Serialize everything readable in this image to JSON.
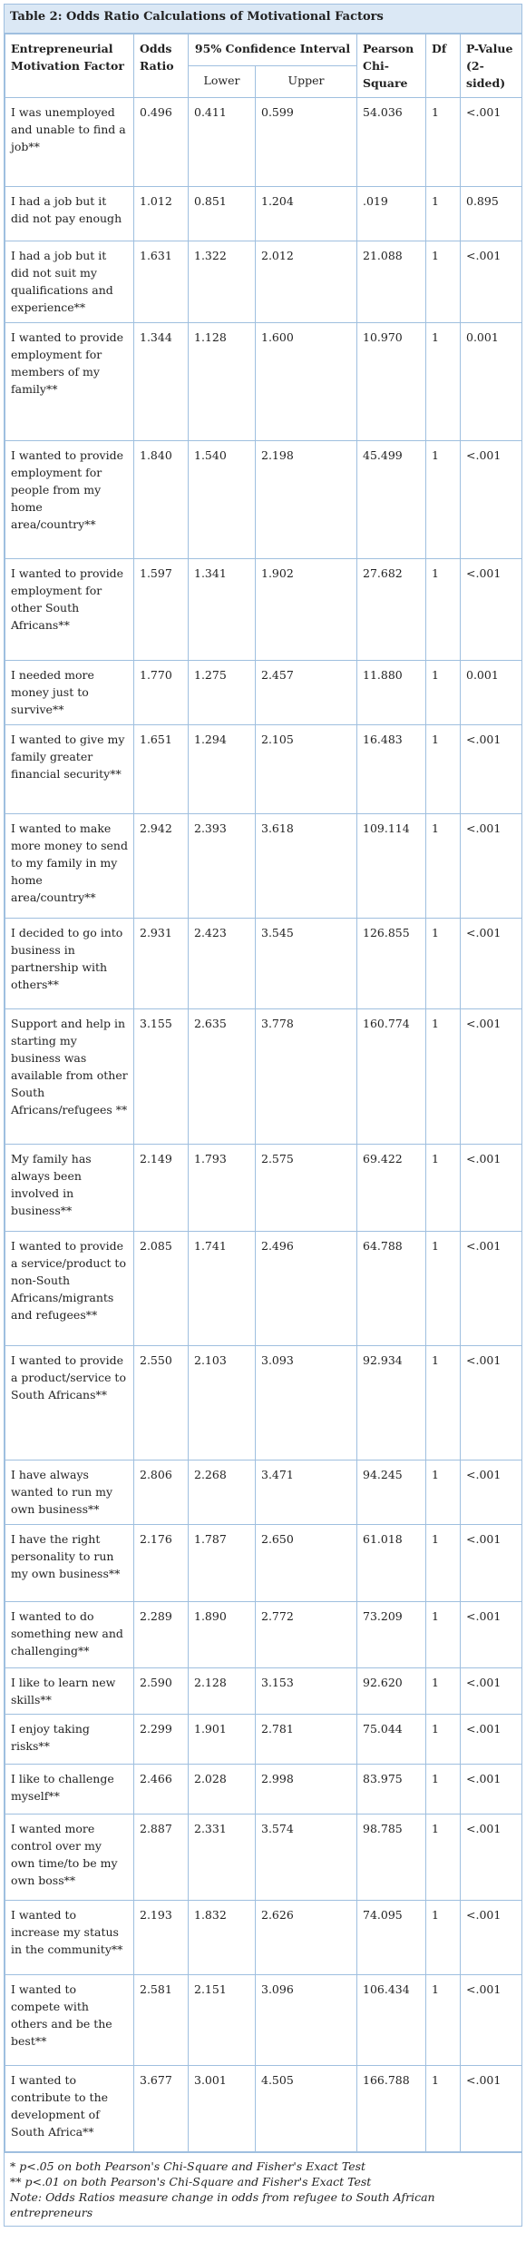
{
  "title": "Table 2: Odds Ratio Calculations of Motivational Factors",
  "header": {
    "factor": "Entrepreneurial Motivation Factor",
    "odds": "Odds Ratio",
    "ci": "95% Confidence Interval",
    "lower": "Lower",
    "upper": "Upper",
    "chi": "Pearson Chi-Square",
    "df": "Df",
    "p": "P-Value (2-sided)"
  },
  "table": {
    "rows": [
      [
        "I was unemployed and unable to find a job**",
        "0.496",
        "0.411",
        "0.599",
        "54.036",
        "1",
        "<.001"
      ],
      [
        "I had a job but it did not pay enough",
        "1.012",
        "0.851",
        "1.204",
        ".019",
        "1",
        "0.895"
      ],
      [
        "I had a job but it did not suit my qualifications and experience**",
        "1.631",
        "1.322",
        "2.012",
        "21.088",
        "1",
        "<.001"
      ],
      [
        "I wanted to provide employment for members of my family**",
        "1.344",
        "1.128",
        "1.600",
        "10.970",
        "1",
        "0.001"
      ],
      [
        "I wanted to provide employment for people from my home area/country**",
        "1.840",
        "1.540",
        "2.198",
        "45.499",
        "1",
        "<.001"
      ],
      [
        "I wanted to provide employment for other South Africans**",
        "1.597",
        "1.341",
        "1.902",
        "27.682",
        "1",
        "<.001"
      ],
      [
        "I needed more money just to survive**",
        "1.770",
        "1.275",
        "2.457",
        "11.880",
        "1",
        "0.001"
      ],
      [
        "I wanted to give my family greater financial security**",
        "1.651",
        "1.294",
        "2.105",
        "16.483",
        "1",
        "<.001"
      ],
      [
        "I wanted to make more money to send to my family in my home area/country**",
        "2.942",
        "2.393",
        "3.618",
        "109.114",
        "1",
        "<.001"
      ],
      [
        "I decided to go into business in partnership with others**",
        "2.931",
        "2.423",
        "3.545",
        "126.855",
        "1",
        "<.001"
      ],
      [
        "Support and help in starting my business was available from other South Africans/refugees **",
        "3.155",
        "2.635",
        "3.778",
        "160.774",
        "1",
        "<.001"
      ],
      [
        "My family has always been involved in business**",
        "2.149",
        "1.793",
        "2.575",
        "69.422",
        "1",
        "<.001"
      ],
      [
        "I wanted to provide a service/product to non-South Africans/migrants and refugees**",
        "2.085",
        "1.741",
        "2.496",
        "64.788",
        "1",
        "<.001"
      ],
      [
        "I wanted to provide a product/service to South Africans**",
        "2.550",
        "2.103",
        "3.093",
        "92.934",
        "1",
        "<.001"
      ],
      [
        "I have always wanted to run my own business**",
        "2.806",
        "2.268",
        "3.471",
        "94.245",
        "1",
        "<.001"
      ],
      [
        "I have the right personality to run my own business**",
        "2.176",
        "1.787",
        "2.650",
        "61.018",
        "1",
        "<.001"
      ],
      [
        "I wanted to do something new and challenging**",
        "2.289",
        "1.890",
        "2.772",
        "73.209",
        "1",
        "<.001"
      ],
      [
        "I like to learn new skills**",
        "2.590",
        "2.128",
        "3.153",
        "92.620",
        "1",
        "<.001"
      ],
      [
        "I enjoy taking risks**",
        "2.299",
        "1.901",
        "2.781",
        "75.044",
        "1",
        "<.001"
      ],
      [
        "I like to challenge myself**",
        "2.466",
        "2.028",
        "2.998",
        "83.975",
        "1",
        "<.001"
      ],
      [
        "I wanted more control over my own time/to be my own boss**",
        "2.887",
        "2.331",
        "3.574",
        "98.785",
        "1",
        "<.001"
      ],
      [
        "I wanted to increase my status in the community**",
        "2.193",
        "1.832",
        "2.626",
        "74.095",
        "1",
        "<.001"
      ],
      [
        "I wanted to compete with others and be the best**",
        "2.581",
        "2.151",
        "3.096",
        "106.434",
        "1",
        "<.001"
      ],
      [
        "I wanted to contribute to the development of South Africa**",
        "3.677",
        "3.001",
        "4.505",
        "166.788",
        "1",
        "<.001"
      ]
    ]
  },
  "notes": [
    "* p<.05 on both Pearson's Chi-Square and Fisher's Exact Test",
    "** p<.01 on both Pearson's Chi-Square and Fisher's Exact Test",
    "Note: Odds Ratios measure change in odds from refugee to South African entrepreneurs"
  ]
}
